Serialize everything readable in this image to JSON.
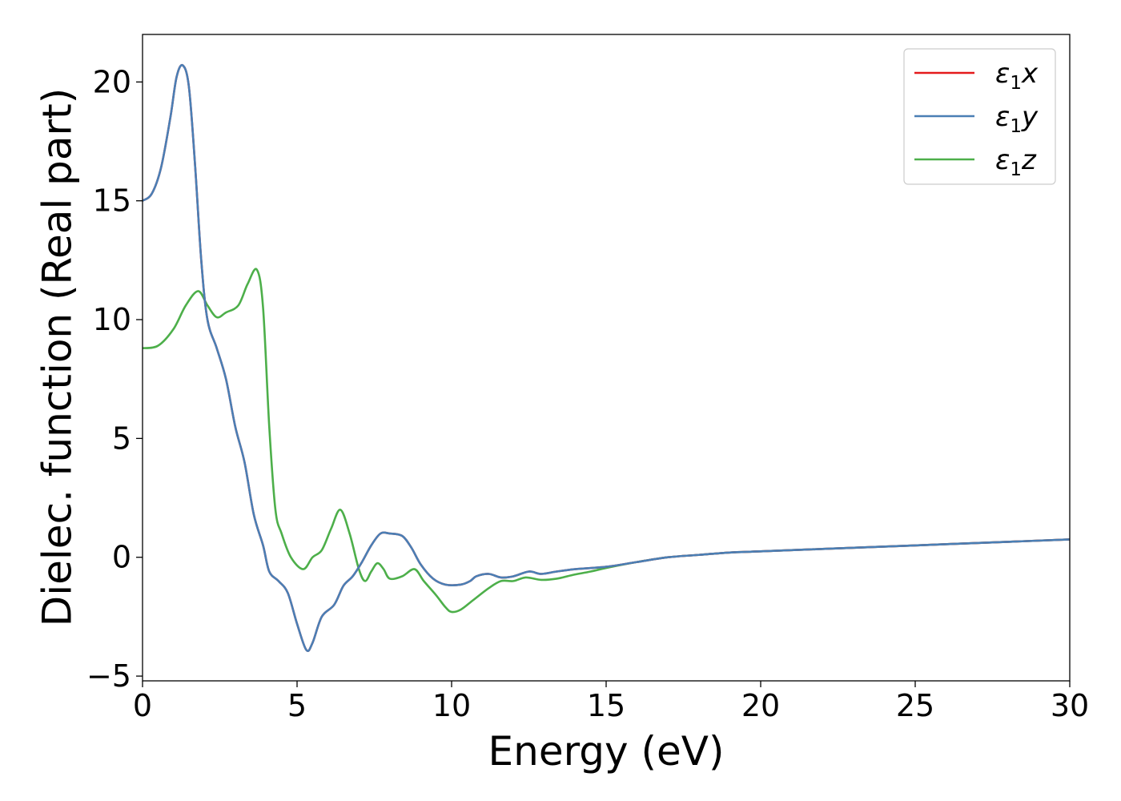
{
  "chart_data": {
    "type": "line",
    "xlabel": "Energy (eV)",
    "ylabel": "Dielec. function (Real part)",
    "xlim": [
      0,
      30
    ],
    "ylim": [
      -5.2,
      22
    ],
    "xticks": [
      0,
      5,
      10,
      15,
      20,
      25,
      30
    ],
    "yticks": [
      -5,
      0,
      5,
      10,
      15,
      20
    ],
    "xtick_labels": [
      "0",
      "5",
      "10",
      "15",
      "20",
      "25",
      "30"
    ],
    "ytick_labels": [
      "−5",
      "0",
      "5",
      "10",
      "15",
      "20"
    ],
    "grid": false,
    "legend_position": "top-right",
    "series": [
      {
        "name": "ε₁x",
        "legend_base": "ε",
        "legend_sub": "1",
        "legend_suffix": "x",
        "color": "#e41a1c",
        "points": [
          [
            0,
            15
          ],
          [
            0.3,
            15.3
          ],
          [
            0.6,
            16.4
          ],
          [
            0.9,
            18.5
          ],
          [
            1.1,
            20.2
          ],
          [
            1.3,
            20.7
          ],
          [
            1.5,
            19.8
          ],
          [
            1.7,
            16.5
          ],
          [
            1.9,
            12.5
          ],
          [
            2.1,
            10
          ],
          [
            2.4,
            8.8
          ],
          [
            2.7,
            7.5
          ],
          [
            3.0,
            5.5
          ],
          [
            3.3,
            4
          ],
          [
            3.6,
            1.8
          ],
          [
            3.9,
            0.5
          ],
          [
            4.1,
            -0.6
          ],
          [
            4.4,
            -1
          ],
          [
            4.7,
            -1.5
          ],
          [
            5.0,
            -2.8
          ],
          [
            5.3,
            -3.9
          ],
          [
            5.5,
            -3.6
          ],
          [
            5.8,
            -2.5
          ],
          [
            6.2,
            -2
          ],
          [
            6.5,
            -1.2
          ],
          [
            6.8,
            -0.8
          ],
          [
            7.1,
            -0.2
          ],
          [
            7.4,
            0.5
          ],
          [
            7.7,
            1
          ],
          [
            8.0,
            1
          ],
          [
            8.4,
            0.9
          ],
          [
            8.7,
            0.4
          ],
          [
            9.0,
            -0.3
          ],
          [
            9.4,
            -0.9
          ],
          [
            9.8,
            -1.15
          ],
          [
            10.3,
            -1.15
          ],
          [
            10.6,
            -1.0
          ],
          [
            10.8,
            -0.8
          ],
          [
            11.2,
            -0.7
          ],
          [
            11.6,
            -0.85
          ],
          [
            12.0,
            -0.8
          ],
          [
            12.5,
            -0.6
          ],
          [
            12.9,
            -0.7
          ],
          [
            13.4,
            -0.6
          ],
          [
            14,
            -0.5
          ],
          [
            15,
            -0.4
          ],
          [
            16,
            -0.2
          ],
          [
            17,
            0
          ],
          [
            18,
            0.1
          ],
          [
            19,
            0.2
          ],
          [
            20,
            0.25
          ],
          [
            22,
            0.35
          ],
          [
            25,
            0.5
          ],
          [
            28,
            0.65
          ],
          [
            30,
            0.75
          ]
        ]
      },
      {
        "name": "ε₁y",
        "legend_base": "ε",
        "legend_sub": "1",
        "legend_suffix": "y",
        "color": "#4a7fb5",
        "points": [
          [
            0,
            15
          ],
          [
            0.3,
            15.3
          ],
          [
            0.6,
            16.4
          ],
          [
            0.9,
            18.5
          ],
          [
            1.1,
            20.2
          ],
          [
            1.3,
            20.7
          ],
          [
            1.5,
            19.8
          ],
          [
            1.7,
            16.5
          ],
          [
            1.9,
            12.5
          ],
          [
            2.1,
            10
          ],
          [
            2.4,
            8.8
          ],
          [
            2.7,
            7.5
          ],
          [
            3.0,
            5.5
          ],
          [
            3.3,
            4
          ],
          [
            3.6,
            1.8
          ],
          [
            3.9,
            0.5
          ],
          [
            4.1,
            -0.6
          ],
          [
            4.4,
            -1
          ],
          [
            4.7,
            -1.5
          ],
          [
            5.0,
            -2.8
          ],
          [
            5.3,
            -3.9
          ],
          [
            5.5,
            -3.6
          ],
          [
            5.8,
            -2.5
          ],
          [
            6.2,
            -2
          ],
          [
            6.5,
            -1.2
          ],
          [
            6.8,
            -0.8
          ],
          [
            7.1,
            -0.2
          ],
          [
            7.4,
            0.5
          ],
          [
            7.7,
            1
          ],
          [
            8.0,
            1
          ],
          [
            8.4,
            0.9
          ],
          [
            8.7,
            0.4
          ],
          [
            9.0,
            -0.3
          ],
          [
            9.4,
            -0.9
          ],
          [
            9.8,
            -1.15
          ],
          [
            10.3,
            -1.15
          ],
          [
            10.6,
            -1.0
          ],
          [
            10.8,
            -0.8
          ],
          [
            11.2,
            -0.7
          ],
          [
            11.6,
            -0.85
          ],
          [
            12.0,
            -0.8
          ],
          [
            12.5,
            -0.6
          ],
          [
            12.9,
            -0.7
          ],
          [
            13.4,
            -0.6
          ],
          [
            14,
            -0.5
          ],
          [
            15,
            -0.4
          ],
          [
            16,
            -0.2
          ],
          [
            17,
            0
          ],
          [
            18,
            0.1
          ],
          [
            19,
            0.2
          ],
          [
            20,
            0.25
          ],
          [
            22,
            0.35
          ],
          [
            25,
            0.5
          ],
          [
            28,
            0.65
          ],
          [
            30,
            0.75
          ]
        ]
      },
      {
        "name": "ε₁z",
        "legend_base": "ε",
        "legend_sub": "1",
        "legend_suffix": "z",
        "color": "#4daf4a",
        "points": [
          [
            0,
            8.8
          ],
          [
            0.5,
            8.9
          ],
          [
            1.0,
            9.6
          ],
          [
            1.4,
            10.6
          ],
          [
            1.8,
            11.2
          ],
          [
            2.1,
            10.6
          ],
          [
            2.4,
            10.1
          ],
          [
            2.7,
            10.3
          ],
          [
            3.1,
            10.6
          ],
          [
            3.4,
            11.5
          ],
          [
            3.7,
            12.1
          ],
          [
            3.9,
            10.5
          ],
          [
            4.1,
            5.5
          ],
          [
            4.3,
            2
          ],
          [
            4.5,
            1
          ],
          [
            4.8,
            0
          ],
          [
            5.2,
            -0.5
          ],
          [
            5.5,
            0
          ],
          [
            5.8,
            0.3
          ],
          [
            6.1,
            1.2
          ],
          [
            6.4,
            2
          ],
          [
            6.7,
            1
          ],
          [
            7.0,
            -0.5
          ],
          [
            7.2,
            -1
          ],
          [
            7.4,
            -0.6
          ],
          [
            7.6,
            -0.25
          ],
          [
            7.8,
            -0.5
          ],
          [
            8.0,
            -0.9
          ],
          [
            8.4,
            -0.8
          ],
          [
            8.8,
            -0.5
          ],
          [
            9.1,
            -1
          ],
          [
            9.5,
            -1.6
          ],
          [
            9.8,
            -2.1
          ],
          [
            10.0,
            -2.3
          ],
          [
            10.3,
            -2.2
          ],
          [
            10.7,
            -1.8
          ],
          [
            11.2,
            -1.3
          ],
          [
            11.6,
            -1
          ],
          [
            12.0,
            -1
          ],
          [
            12.4,
            -0.85
          ],
          [
            12.9,
            -0.95
          ],
          [
            13.4,
            -0.9
          ],
          [
            13.9,
            -0.75
          ],
          [
            14.5,
            -0.6
          ],
          [
            15,
            -0.45
          ],
          [
            16,
            -0.2
          ],
          [
            17,
            0
          ],
          [
            18,
            0.1
          ],
          [
            19,
            0.2
          ],
          [
            20,
            0.25
          ],
          [
            22,
            0.35
          ],
          [
            25,
            0.5
          ],
          [
            28,
            0.65
          ],
          [
            30,
            0.75
          ]
        ]
      }
    ]
  }
}
